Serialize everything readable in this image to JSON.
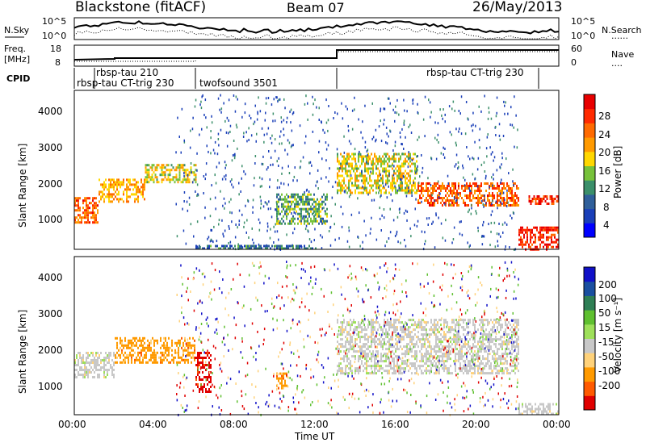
{
  "header": {
    "station": "Blackstone (fitACF)",
    "beam": "Beam 07",
    "date": "26/May/2013"
  },
  "noise_panel": {
    "left_label": "N.Sky",
    "right_label": "N.Search",
    "right_legend_dots": "......",
    "ticks_left": [
      "10^5",
      "10^0"
    ],
    "ticks_right": [
      "10^5",
      "10^0"
    ]
  },
  "freq_panel": {
    "left_label_1": "Freq.",
    "left_label_2": "[MHz]",
    "ticks_left": [
      "18",
      "8"
    ],
    "right_label": "Nave",
    "right_legend_dots": "....",
    "ticks_right": [
      "60",
      "0"
    ]
  },
  "cpid": {
    "label": "CPID",
    "modes": [
      "rbsp-tau 210",
      "rbsp-tau CT-trig 230",
      "twofsound 3501",
      "rbsp-tau CT-trig 230"
    ]
  },
  "power_panel": {
    "ylabel": "Slant Range [km]",
    "yticks": [
      "4000",
      "3000",
      "2000",
      "1000"
    ],
    "colorbar_label": "Power [dB]",
    "colorbar_ticks": [
      "28",
      "24",
      "20",
      "16",
      "12",
      "8",
      "4"
    ],
    "colorbar_colors": [
      "#0000ff",
      "#1a3fb8",
      "#2f5f9a",
      "#3b8f6a",
      "#77c23b",
      "#ffd700",
      "#ff9a00",
      "#ff6a00",
      "#ff2a00",
      "#e80000"
    ]
  },
  "velocity_panel": {
    "ylabel": "Slant Range [km]",
    "yticks": [
      "4000",
      "3000",
      "2000",
      "1000"
    ],
    "colorbar_label": "Velocity [m s⁻¹]",
    "colorbar_ticks": [
      "200",
      "100",
      "50",
      "15",
      "-15",
      "-50",
      "-100",
      "-200"
    ],
    "colorbar_colors": [
      "#1010c8",
      "#1a4fa0",
      "#2f7f55",
      "#5fc030",
      "#9ee05a",
      "#c8c8c8",
      "#ffd27a",
      "#ff9a00",
      "#ff5a00",
      "#e00000"
    ]
  },
  "x_axis": {
    "ticks": [
      "00:00",
      "04:00",
      "08:00",
      "12:00",
      "16:00",
      "20:00",
      "00:00"
    ],
    "label": "Time UT"
  },
  "chart_data": {
    "type": "heatmap",
    "x_range_hours": [
      0,
      24
    ],
    "y_range_km": [
      180,
      4500
    ],
    "power_regions_dB": [
      {
        "t": [
          0.0,
          1.2
        ],
        "r": [
          900,
          1600
        ],
        "value": 24
      },
      {
        "t": [
          1.2,
          3.5
        ],
        "r": [
          1500,
          2100
        ],
        "value": 20
      },
      {
        "t": [
          3.5,
          6.0
        ],
        "r": [
          2000,
          2500
        ],
        "value": 16
      },
      {
        "t": [
          6.0,
          12.0
        ],
        "r": [
          180,
          300
        ],
        "value": 8
      },
      {
        "t": [
          10.0,
          12.5
        ],
        "r": [
          900,
          1700
        ],
        "value": 12
      },
      {
        "t": [
          13.0,
          17.0
        ],
        "r": [
          1700,
          2800
        ],
        "value": 16
      },
      {
        "t": [
          17.0,
          22.0
        ],
        "r": [
          1400,
          2000
        ],
        "value": 24
      },
      {
        "t": [
          22.0,
          24.0
        ],
        "r": [
          200,
          800
        ],
        "value": 28
      },
      {
        "t": [
          22.5,
          24.0
        ],
        "r": [
          1400,
          1650
        ],
        "value": 28
      }
    ],
    "velocity_regions_ms": [
      {
        "t": [
          0.0,
          2.0
        ],
        "r": [
          1200,
          1900
        ],
        "value": 0
      },
      {
        "t": [
          2.0,
          6.0
        ],
        "r": [
          1600,
          2300
        ],
        "value": -50
      },
      {
        "t": [
          6.0,
          6.8
        ],
        "r": [
          800,
          1900
        ],
        "value": -200
      },
      {
        "t": [
          10.0,
          10.5
        ],
        "r": [
          900,
          1400
        ],
        "value": -50
      },
      {
        "t": [
          13.0,
          22.0
        ],
        "r": [
          1300,
          2800
        ],
        "value": 0
      },
      {
        "t": [
          22.0,
          24.0
        ],
        "r": [
          180,
          500
        ],
        "value": 0
      }
    ]
  }
}
